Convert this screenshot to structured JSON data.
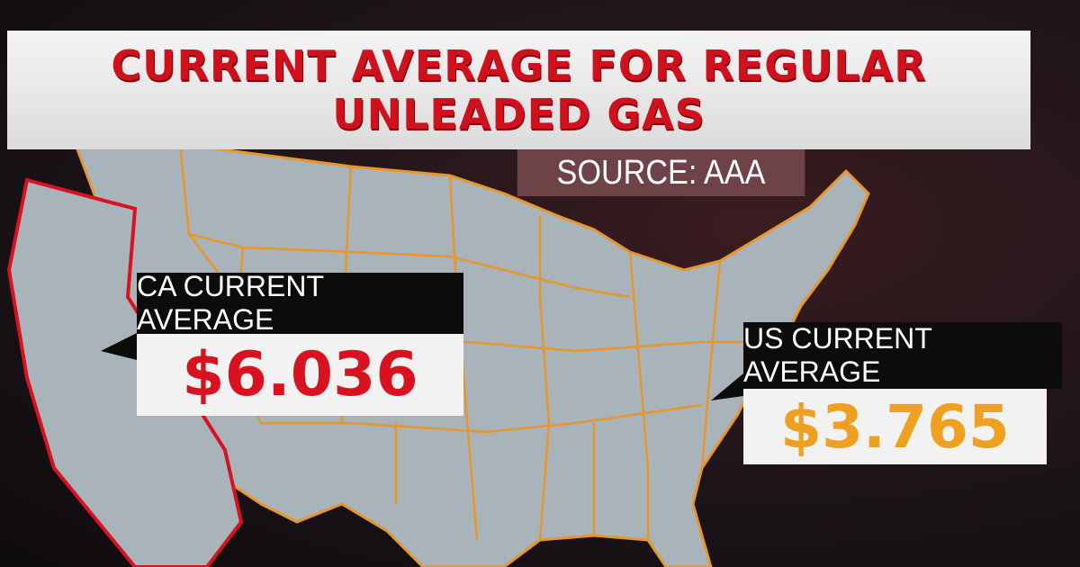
{
  "title": {
    "line1": "CURRENT AVERAGE FOR REGULAR",
    "line2": "UNLEADED GAS"
  },
  "source": "SOURCE: AAA",
  "ca": {
    "label": "CA CURRENT AVERAGE",
    "price": "$6.036",
    "color": "#d8121e"
  },
  "us": {
    "label": "US CURRENT AVERAGE",
    "price": "$3.765",
    "color": "#f0a020"
  },
  "colors": {
    "state_fill": "#a9b3ba",
    "state_border": "#e8962a",
    "highlight_border": "#d8121e"
  }
}
